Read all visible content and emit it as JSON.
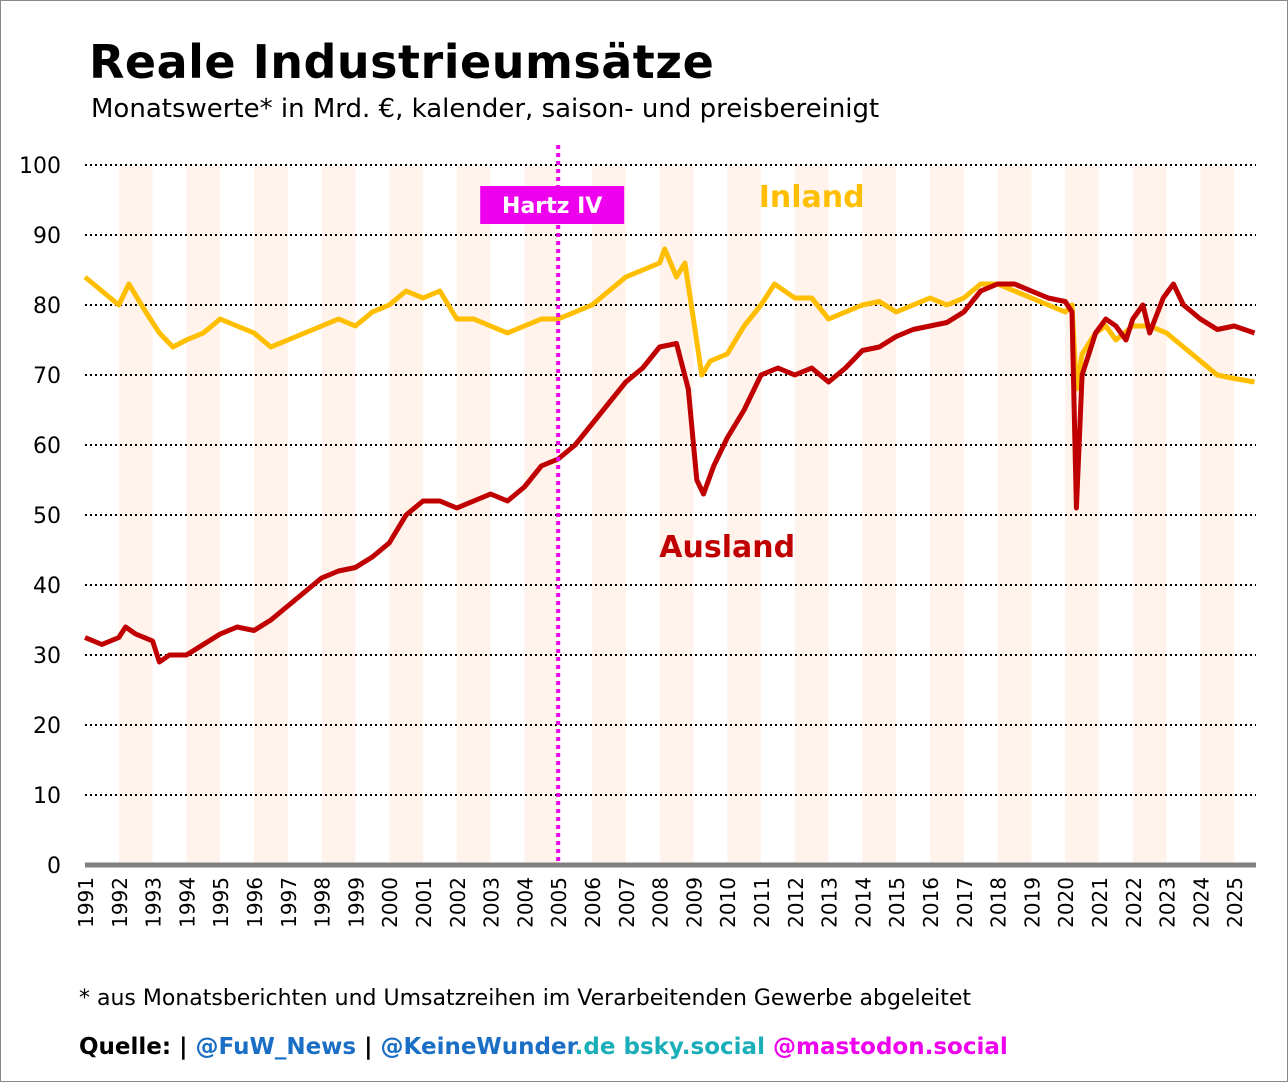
{
  "chart_data": {
    "type": "line",
    "title": "Reale Industrieumsätze",
    "subtitle": "Monatswerte* in Mrd. €, kalender, saison- und preisbereinigt",
    "ylim": [
      0,
      100
    ],
    "xlim": [
      1991,
      2025.7
    ],
    "yticks": [
      0,
      10,
      20,
      30,
      40,
      50,
      60,
      70,
      80,
      90,
      100
    ],
    "xticks": [
      "1991",
      "1992",
      "1993",
      "1994",
      "1995",
      "1996",
      "1997",
      "1998",
      "1999",
      "2000",
      "2001",
      "2002",
      "2003",
      "2004",
      "2005",
      "2006",
      "2007",
      "2008",
      "2009",
      "2010",
      "2011",
      "2012",
      "2013",
      "2014",
      "2015",
      "2016",
      "2017",
      "2018",
      "2019",
      "2020",
      "2021",
      "2022",
      "2023",
      "2024",
      "2025"
    ],
    "grid": "horizontal dotted",
    "series": [
      {
        "name": "Inland",
        "color": "#ffbf00",
        "x": [
          1991,
          1991.5,
          1992,
          1992.3,
          1992.8,
          1993.2,
          1993.6,
          1994,
          1994.5,
          1995,
          1995.5,
          1996,
          1996.5,
          1997,
          1997.5,
          1998,
          1998.5,
          1999,
          1999.5,
          2000,
          2000.5,
          2001,
          2001.5,
          2002,
          2002.5,
          2003,
          2003.5,
          2004,
          2004.5,
          2005,
          2005.5,
          2006,
          2006.5,
          2007,
          2007.5,
          2008,
          2008.15,
          2008.5,
          2008.75,
          2009,
          2009.25,
          2009.5,
          2010,
          2010.5,
          2011,
          2011.4,
          2012,
          2012.5,
          2013,
          2013.5,
          2014,
          2014.5,
          2015,
          2015.5,
          2016,
          2016.5,
          2017,
          2017.5,
          2018,
          2018.5,
          2019,
          2019.5,
          2020,
          2020.2,
          2020.33,
          2020.5,
          2020.9,
          2021.2,
          2021.5,
          2022,
          2022.5,
          2023,
          2023.5,
          2024,
          2024.5,
          2025,
          2025.6
        ],
        "y": [
          84,
          82,
          80,
          83,
          79,
          76,
          74,
          75,
          76,
          78,
          77,
          76,
          74,
          75,
          76,
          77,
          78,
          77,
          79,
          80,
          82,
          81,
          82,
          78,
          78,
          77,
          76,
          77,
          78,
          78,
          79,
          80,
          82,
          84,
          85,
          86,
          88,
          84,
          86,
          78,
          70,
          72,
          73,
          77,
          80,
          83,
          81,
          81,
          78,
          79,
          80,
          80.5,
          79,
          80,
          81,
          80,
          81,
          83,
          83,
          82,
          81,
          80,
          79,
          80,
          68,
          73,
          76,
          77,
          75,
          77,
          77,
          76,
          74,
          72,
          70,
          69.5,
          69
        ]
      },
      {
        "name": "Ausland",
        "color": "#c00000",
        "x": [
          1991,
          1991.5,
          1992,
          1992.2,
          1992.5,
          1993,
          1993.2,
          1993.5,
          1994,
          1994.5,
          1995,
          1995.5,
          1996,
          1996.5,
          1997,
          1997.5,
          1998,
          1998.5,
          1999,
          1999.5,
          2000,
          2000.5,
          2001,
          2001.5,
          2002,
          2002.5,
          2003,
          2003.5,
          2004,
          2004.5,
          2005,
          2005.5,
          2006,
          2006.5,
          2007,
          2007.5,
          2008,
          2008.5,
          2008.85,
          2009.1,
          2009.3,
          2009.6,
          2010,
          2010.5,
          2011,
          2011.5,
          2012,
          2012.5,
          2013,
          2013.5,
          2014,
          2014.5,
          2015,
          2015.5,
          2016,
          2016.5,
          2017,
          2017.5,
          2018,
          2018.5,
          2019,
          2019.5,
          2020,
          2020.2,
          2020.33,
          2020.5,
          2020.9,
          2021.2,
          2021.5,
          2021.8,
          2022,
          2022.3,
          2022.5,
          2022.9,
          2023.2,
          2023.5,
          2024,
          2024.5,
          2025,
          2025.6
        ],
        "y": [
          32.5,
          31.5,
          32.5,
          34,
          33,
          32,
          29,
          30,
          30,
          31.5,
          33,
          34,
          33.5,
          35,
          37,
          39,
          41,
          42,
          42.5,
          44,
          46,
          50,
          52,
          52,
          51,
          52,
          53,
          52,
          54,
          57,
          58,
          60,
          63,
          66,
          69,
          71,
          74,
          74.5,
          68,
          55,
          53,
          57,
          61,
          65,
          70,
          71,
          70,
          71,
          69,
          71,
          73.5,
          74,
          75.5,
          76.5,
          77,
          77.5,
          79,
          82,
          83,
          83,
          82,
          81,
          80.5,
          79,
          51,
          70,
          76,
          78,
          77,
          75,
          78,
          80,
          76,
          81,
          83,
          80,
          78,
          76.5,
          77,
          76
        ]
      }
    ],
    "annotations": [
      {
        "text": "Inland",
        "color": "#ffbf00",
        "at_x": 2012.5,
        "at_y": 94
      },
      {
        "text": "Ausland",
        "color": "#c00000",
        "at_x": 2010,
        "at_y": 44
      },
      {
        "text": "Hartz IV",
        "color": "#ee00ee",
        "at_x": 2005,
        "type": "vertical-line"
      }
    ],
    "shaded_years": [
      1992,
      1994,
      1996,
      1998,
      2000,
      2002,
      2004,
      2006,
      2008,
      2010,
      2012,
      2014,
      2016,
      2018,
      2020,
      2022,
      2024
    ],
    "shade_color": "#fff3ec"
  },
  "footer": {
    "note": "* aus Monatsberichten und Umsatzreihen im Verarbeitenden Gewerbe abgeleitet",
    "source_label": "Quelle: | ",
    "fuw": "@FuW_News",
    "sep": " | ",
    "kw": "@KeineWunder",
    "de": ".de bsky.social",
    "masto": " @mastodon.social"
  }
}
